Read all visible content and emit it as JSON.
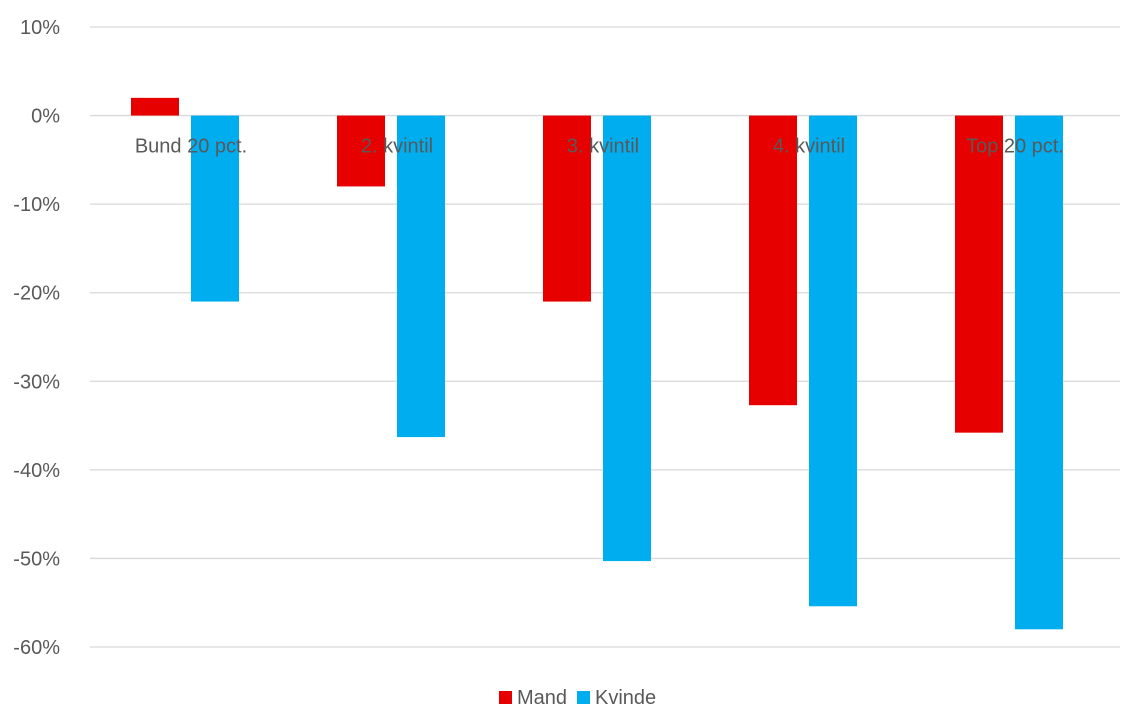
{
  "chart_data": {
    "type": "bar",
    "categories": [
      "Bund 20 pct.",
      "2. kvintil",
      "3. kvintil",
      "4. kvintil",
      "Top 20 pct."
    ],
    "series": [
      {
        "name": "Mand",
        "color": "#e60000",
        "values": [
          2,
          -8,
          -21,
          -32.7,
          -35.8
        ]
      },
      {
        "name": "Kvinde",
        "color": "#00adef",
        "values": [
          -21,
          -36.3,
          -50.3,
          -55.4,
          -58
        ]
      }
    ],
    "ylim": [
      -60,
      10
    ],
    "yticks": [
      10,
      0,
      -10,
      -20,
      -30,
      -40,
      -50,
      -60
    ],
    "ytick_labels": [
      "10%",
      "0%",
      "-10%",
      "-20%",
      "-30%",
      "-40%",
      "-50%",
      "-60%"
    ],
    "grid": true,
    "legend": "bottom-center"
  }
}
